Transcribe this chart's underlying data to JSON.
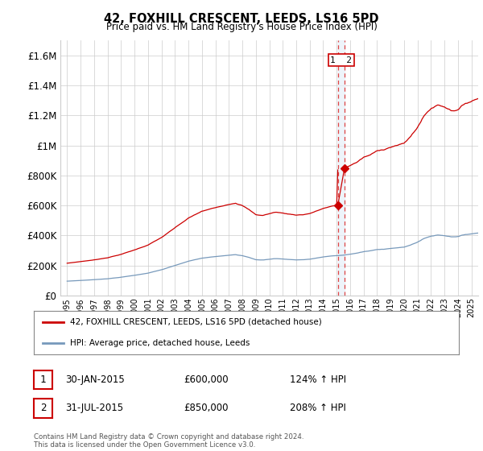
{
  "title": "42, FOXHILL CRESCENT, LEEDS, LS16 5PD",
  "subtitle": "Price paid vs. HM Land Registry's House Price Index (HPI)",
  "legend_line1": "42, FOXHILL CRESCENT, LEEDS, LS16 5PD (detached house)",
  "legend_line2": "HPI: Average price, detached house, Leeds",
  "footnote": "Contains HM Land Registry data © Crown copyright and database right 2024.\nThis data is licensed under the Open Government Licence v3.0.",
  "table_rows": [
    {
      "num": "1",
      "date": "30-JAN-2015",
      "price": "£600,000",
      "hpi": "124% ↑ HPI"
    },
    {
      "num": "2",
      "date": "31-JUL-2015",
      "price": "£850,000",
      "hpi": "208% ↑ HPI"
    }
  ],
  "sale1_x": 2015.083,
  "sale1_y": 600000,
  "sale2_x": 2015.583,
  "sale2_y": 850000,
  "red_color": "#cc0000",
  "blue_color": "#7799bb",
  "vline_color": "#dd4444",
  "ylim": [
    0,
    1700000
  ],
  "yticks": [
    0,
    200000,
    400000,
    600000,
    800000,
    1000000,
    1200000,
    1400000,
    1600000
  ],
  "xlim": [
    1994.5,
    2025.5
  ],
  "xticks": [
    1995,
    1996,
    1997,
    1998,
    1999,
    2000,
    2001,
    2002,
    2003,
    2004,
    2005,
    2006,
    2007,
    2008,
    2009,
    2010,
    2011,
    2012,
    2013,
    2014,
    2015,
    2016,
    2017,
    2018,
    2019,
    2020,
    2021,
    2022,
    2023,
    2024,
    2025
  ],
  "background_color": "#ffffff",
  "grid_color": "#cccccc"
}
